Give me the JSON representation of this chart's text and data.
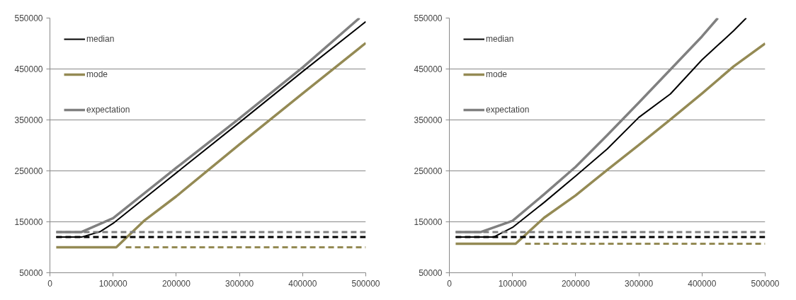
{
  "chart_data": [
    {
      "type": "line",
      "xlim": [
        0,
        500000
      ],
      "ylim": [
        50000,
        550000
      ],
      "xticks": [
        0,
        100000,
        200000,
        300000,
        400000,
        500000
      ],
      "yticks": [
        50000,
        150000,
        250000,
        350000,
        450000,
        550000
      ],
      "grid": "y",
      "legend": "top left",
      "line_style": "solid",
      "series": [
        {
          "name": "median",
          "color": "#000000",
          "x": [
            10000,
            50000,
            80000,
            100000,
            200000,
            300000,
            400000,
            500000
          ],
          "values": [
            120000,
            120000,
            131000,
            147000,
            246000,
            345000,
            445000,
            543000
          ]
        },
        {
          "name": "mode",
          "color": "#948a54",
          "x": [
            10000,
            105000,
            150000,
            200000,
            300000,
            400000,
            500000
          ],
          "values": [
            100000,
            100000,
            153000,
            200000,
            302000,
            402000,
            501000
          ]
        },
        {
          "name": "expectation",
          "color": "#808080",
          "x": [
            10000,
            50000,
            100000,
            200000,
            300000,
            400000,
            490000
          ],
          "values": [
            130000,
            130000,
            157000,
            256000,
            353000,
            453000,
            550000
          ]
        },
        {
          "color": "#808080",
          "line_style": "dashed",
          "x": [
            10000,
            500000
          ],
          "values": [
            130000,
            130000
          ]
        },
        {
          "color": "#000000",
          "line_style": "dashed",
          "x": [
            10000,
            500000
          ],
          "values": [
            120000,
            120000
          ]
        },
        {
          "color": "#948a54",
          "line_style": "dashed",
          "x": [
            120000,
            500000
          ],
          "values": [
            100000,
            100000
          ]
        }
      ]
    },
    {
      "type": "line",
      "xlim": [
        0,
        500000
      ],
      "ylim": [
        50000,
        550000
      ],
      "xticks": [
        0,
        100000,
        200000,
        300000,
        400000,
        500000
      ],
      "yticks": [
        50000,
        150000,
        250000,
        350000,
        450000,
        550000
      ],
      "grid": "y",
      "legend": "top left",
      "line_style": "solid",
      "series": [
        {
          "name": "median",
          "color": "#000000",
          "x": [
            10000,
            70000,
            100000,
            150000,
            200000,
            250000,
            300000,
            350000,
            400000,
            450000,
            470000
          ],
          "values": [
            120000,
            120000,
            139000,
            188000,
            240000,
            293000,
            355000,
            401000,
            468000,
            525000,
            550000
          ]
        },
        {
          "name": "mode",
          "color": "#948a54",
          "x": [
            10000,
            105000,
            150000,
            200000,
            250000,
            300000,
            350000,
            400000,
            450000,
            500000
          ],
          "values": [
            107000,
            107000,
            158000,
            202000,
            252000,
            301000,
            351000,
            402000,
            455000,
            500000
          ]
        },
        {
          "name": "expectation",
          "color": "#808080",
          "x": [
            10000,
            50000,
            100000,
            150000,
            200000,
            250000,
            300000,
            350000,
            400000,
            425000
          ],
          "values": [
            130000,
            130000,
            152000,
            204000,
            258000,
            320000,
            384000,
            449000,
            514000,
            550000
          ]
        },
        {
          "color": "#808080",
          "line_style": "dashed",
          "x": [
            10000,
            500000
          ],
          "values": [
            130000,
            130000
          ]
        },
        {
          "color": "#000000",
          "line_style": "dashed",
          "x": [
            10000,
            500000
          ],
          "values": [
            120000,
            120000
          ]
        },
        {
          "color": "#948a54",
          "line_style": "dashed",
          "x": [
            120000,
            500000
          ],
          "values": [
            107000,
            107000
          ]
        }
      ]
    }
  ]
}
